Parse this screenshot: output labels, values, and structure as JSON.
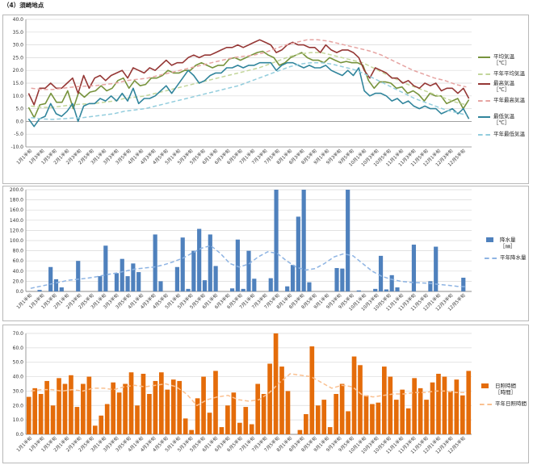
{
  "page": {
    "title": "（4）須崎地点"
  },
  "x_labels": [
    "1月1半旬",
    "1月3半旬",
    "1月5半旬",
    "2月1半旬",
    "2月3半旬",
    "2月5半旬",
    "3月1半旬",
    "3月3半旬",
    "3月5半旬",
    "4月1半旬",
    "4月3半旬",
    "4月5半旬",
    "5月1半旬",
    "5月3半旬",
    "5月5半旬",
    "6月1半旬",
    "6月3半旬",
    "6月5半旬",
    "7月1半旬",
    "7月3半旬",
    "7月5半旬",
    "8月1半旬",
    "8月3半旬",
    "8月5半旬",
    "9月1半旬",
    "9月3半旬",
    "9月5半旬",
    "10月1半旬",
    "10月3半旬",
    "10月5半旬",
    "11月1半旬",
    "11月3半旬",
    "11月5半旬",
    "12月1半旬",
    "12月3半旬",
    "12月5半旬"
  ],
  "colors": {
    "mean_temp": "#77933c",
    "normal_mean_temp": "#c3d69b",
    "max_temp": "#953735",
    "normal_max_temp": "#e6a4a2",
    "min_temp": "#31859c",
    "normal_min_temp": "#93cddd",
    "precip": "#4f81bd",
    "normal_precip": "#8eb4e3",
    "sun": "#e46c0a",
    "normal_sun": "#fac090",
    "grid": "#d9d9d9",
    "axis": "#868686"
  },
  "chart_data": [
    {
      "id": "temperature",
      "type": "line",
      "ylim": [
        -10,
        40
      ],
      "yticks": [
        "-10.0",
        "-5.0",
        "0.0",
        "5.0",
        "10.0",
        "15.0",
        "20.0",
        "25.0",
        "30.0",
        "35.0",
        "40.0"
      ],
      "grid": true,
      "legend_position": "right",
      "series": [
        {
          "key": "mean_temp",
          "name": "平均気温",
          "unit": "［℃］",
          "style": "solid",
          "values": [
            5.5,
            1.5,
            6.5,
            7,
            11,
            7.5,
            7.5,
            12,
            5,
            11.5,
            9.5,
            11.5,
            12,
            14,
            12,
            13,
            16,
            17,
            13,
            16,
            14,
            14.5,
            17,
            17,
            18,
            20,
            19,
            19,
            20,
            20,
            22,
            23,
            22,
            21,
            22,
            22,
            24.5,
            25,
            24,
            25,
            26,
            27,
            27.5,
            26,
            25,
            22,
            23,
            25,
            26,
            27,
            25,
            24,
            24,
            23,
            25,
            24,
            23,
            23.5,
            23,
            23,
            22,
            16,
            13,
            15.5,
            15.5,
            15,
            13,
            13.5,
            11,
            12,
            10.5,
            8,
            11,
            10,
            10,
            7,
            8,
            9,
            5,
            8.5
          ]
        },
        {
          "key": "normal_mean_temp",
          "name": "平年平均気温",
          "style": "dashed",
          "values": [
            6,
            5.5,
            5.5,
            6,
            6.5,
            6.8,
            7,
            7.5,
            8,
            9,
            9.5,
            10,
            11,
            12,
            13,
            14,
            15,
            16,
            17,
            18,
            19,
            20,
            21,
            22.5,
            24,
            25.5,
            26.5,
            27,
            27,
            26,
            25,
            24,
            23,
            21,
            19,
            17,
            15,
            13.5,
            12,
            10.5,
            9,
            7.5,
            6.5
          ]
        },
        {
          "key": "max_temp",
          "name": "最高気温",
          "unit": "［℃］",
          "style": "solid",
          "values": [
            11,
            6.5,
            13,
            13,
            15,
            13,
            13,
            15,
            17,
            11,
            18,
            13,
            17,
            18,
            16,
            18,
            19,
            20,
            17,
            21,
            20,
            19,
            21,
            20,
            22,
            24,
            22,
            23,
            23,
            25,
            26,
            25,
            26,
            26,
            27,
            28,
            29,
            29,
            30,
            29,
            30,
            31,
            32,
            31,
            30,
            27,
            28,
            30,
            31,
            30,
            30,
            29,
            29,
            27,
            30,
            28,
            27,
            28,
            28,
            27,
            25,
            20,
            17,
            21,
            20,
            19,
            17,
            17,
            15,
            16,
            14,
            13,
            15,
            14,
            15,
            12,
            13,
            13,
            11,
            13,
            9
          ]
        },
        {
          "key": "normal_max_temp",
          "name": "平年最高気温",
          "style": "dashed",
          "values": [
            13,
            12.5,
            12.5,
            13,
            13.5,
            13.8,
            14,
            14.5,
            15,
            16,
            16.5,
            17,
            18,
            19,
            20,
            21,
            22,
            23,
            24,
            25,
            25.5,
            26,
            27,
            28.5,
            30,
            31,
            32,
            32,
            31.5,
            30.5,
            29.5,
            28.5,
            27.5,
            26,
            24,
            22,
            20,
            18.5,
            17,
            16,
            14.5,
            13.5
          ]
        },
        {
          "key": "min_temp",
          "name": "最低気温",
          "unit": "［℃］",
          "style": "solid",
          "values": [
            1,
            -2,
            1,
            2,
            7,
            3,
            2,
            4,
            7,
            0,
            6,
            7,
            7,
            9,
            8,
            10,
            8,
            11,
            8,
            13,
            7,
            9,
            9,
            10,
            12,
            14,
            11,
            14,
            17,
            20,
            18,
            15,
            16,
            18,
            19,
            19,
            21,
            21,
            22,
            21,
            22,
            22,
            23,
            23,
            23,
            20,
            22,
            23,
            23,
            22,
            21,
            22,
            21,
            21,
            22,
            20,
            19,
            18,
            20,
            18,
            21,
            12,
            10,
            11,
            11,
            10,
            8,
            9,
            7,
            8,
            6,
            5,
            6,
            5,
            5,
            3,
            4,
            5,
            3,
            5,
            1
          ]
        },
        {
          "key": "normal_min_temp",
          "name": "平年最低気温",
          "style": "dashed",
          "values": [
            1.5,
            1,
            0.8,
            1,
            1.3,
            1.5,
            2,
            2.5,
            3,
            4,
            4.5,
            5,
            6,
            7,
            8,
            9,
            10,
            11,
            12,
            13,
            14,
            15.5,
            17,
            18.5,
            20,
            21.5,
            22.5,
            23,
            23,
            22.5,
            21.5,
            20.5,
            19,
            17,
            15,
            13,
            11,
            9,
            7.5,
            6,
            4.5,
            3.5,
            2.5
          ]
        }
      ]
    },
    {
      "id": "precipitation",
      "type": "bar",
      "ylim": [
        0,
        200
      ],
      "yticks": [
        "0.0",
        "20.0",
        "40.0",
        "60.0",
        "80.0",
        "100.0",
        "120.0",
        "140.0",
        "160.0",
        "180.0",
        "200.0"
      ],
      "grid": true,
      "legend_position": "right",
      "series": [
        {
          "key": "precip",
          "name": "降水量",
          "unit": "［㎜］",
          "style": "bar",
          "values": [
            0,
            0,
            3,
            0,
            48,
            24,
            8,
            0,
            0,
            60,
            0,
            0,
            0,
            30,
            90,
            0,
            36,
            64,
            30,
            55,
            38,
            0,
            0,
            112,
            20,
            0,
            0,
            48,
            106,
            5,
            80,
            123,
            22,
            112,
            50,
            0,
            0,
            6,
            102,
            5,
            80,
            25,
            0,
            0,
            26,
            200,
            0,
            10,
            52,
            147,
            200,
            18,
            0,
            0,
            0,
            0,
            46,
            45,
            200,
            0,
            2,
            0,
            0,
            5,
            70,
            4,
            32,
            8,
            0,
            0,
            92,
            0,
            0,
            20,
            88,
            0,
            0,
            0,
            0,
            27,
            0
          ]
        },
        {
          "key": "normal_precip",
          "name": "平年降水量",
          "style": "dashed",
          "values": [
            6,
            10,
            14,
            18,
            22,
            24,
            26,
            29,
            33,
            36,
            40,
            44,
            46,
            48,
            52,
            58,
            65,
            75,
            85,
            90,
            75,
            55,
            48,
            54,
            68,
            78,
            75,
            60,
            48,
            42,
            45,
            55,
            68,
            74,
            70,
            55,
            40,
            30,
            24,
            20,
            18,
            17,
            16,
            14,
            12,
            10,
            9
          ]
        }
      ]
    },
    {
      "id": "sunshine",
      "type": "bar",
      "ylim": [
        0,
        70
      ],
      "yticks": [
        "0.0",
        "10.0",
        "20.0",
        "30.0",
        "40.0",
        "50.0",
        "60.0",
        "70.0"
      ],
      "grid": true,
      "legend_position": "right",
      "series": [
        {
          "key": "sun",
          "name": "日照時間",
          "unit": "［時間］",
          "style": "bar",
          "values": [
            26,
            32,
            28,
            37,
            20,
            39,
            35,
            41,
            19,
            35,
            40,
            6,
            13,
            21,
            36,
            29,
            35,
            43,
            20,
            42,
            28,
            37,
            43,
            31,
            38,
            37,
            11,
            3,
            25,
            40,
            15,
            44,
            5,
            20,
            29,
            8,
            19,
            7,
            35,
            28,
            49,
            70,
            47,
            30,
            0,
            3,
            14,
            61,
            20,
            24,
            5,
            28,
            35,
            16,
            54,
            48,
            27,
            21,
            22,
            47,
            40,
            24,
            31,
            18,
            39,
            32,
            24,
            36,
            42,
            40,
            30,
            38,
            27,
            44
          ]
        },
        {
          "key": "normal_sun",
          "name": "平年日照時間",
          "style": "dashed",
          "values": [
            30,
            31,
            31,
            30,
            31,
            30,
            32,
            32,
            31,
            33,
            34,
            33,
            34,
            35,
            33,
            28,
            20,
            24,
            26,
            27,
            24,
            23,
            24,
            29,
            36,
            42,
            41,
            40,
            36,
            32,
            34,
            33,
            27,
            26,
            27,
            28,
            28,
            29,
            29,
            30,
            30,
            29,
            29
          ]
        }
      ]
    }
  ]
}
